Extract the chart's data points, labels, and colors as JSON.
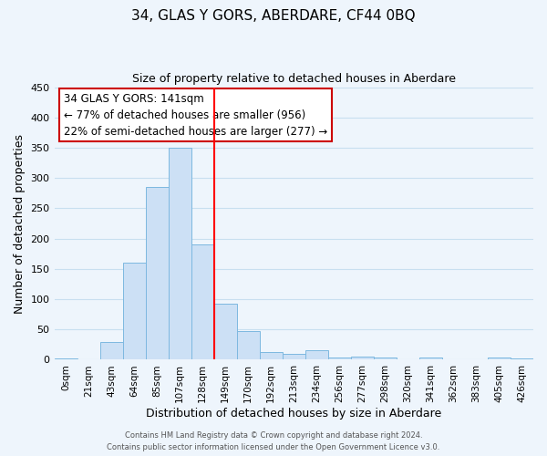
{
  "title": "34, GLAS Y GORS, ABERDARE, CF44 0BQ",
  "subtitle": "Size of property relative to detached houses in Aberdare",
  "xlabel": "Distribution of detached houses by size in Aberdare",
  "ylabel": "Number of detached properties",
  "bar_labels": [
    "0sqm",
    "21sqm",
    "43sqm",
    "64sqm",
    "85sqm",
    "107sqm",
    "128sqm",
    "149sqm",
    "170sqm",
    "192sqm",
    "213sqm",
    "234sqm",
    "256sqm",
    "277sqm",
    "298sqm",
    "320sqm",
    "341sqm",
    "362sqm",
    "383sqm",
    "405sqm",
    "426sqm"
  ],
  "bar_values": [
    2,
    0,
    30,
    160,
    285,
    350,
    190,
    93,
    48,
    13,
    10,
    16,
    4,
    5,
    4,
    0,
    3,
    0,
    0,
    3,
    2
  ],
  "bar_color": "#cce0f5",
  "bar_edge_color": "#7db8e0",
  "vline_x_index": 7.0,
  "vline_color": "red",
  "ylim": [
    0,
    450
  ],
  "yticks": [
    0,
    50,
    100,
    150,
    200,
    250,
    300,
    350,
    400,
    450
  ],
  "annotation_title": "34 GLAS Y GORS: 141sqm",
  "annotation_line1": "← 77% of detached houses are smaller (956)",
  "annotation_line2": "22% of semi-detached houses are larger (277) →",
  "annotation_box_color": "#ffffff",
  "annotation_box_edge": "#cc0000",
  "footer_line1": "Contains HM Land Registry data © Crown copyright and database right 2024.",
  "footer_line2": "Contains public sector information licensed under the Open Government Licence v3.0.",
  "grid_color": "#c8dff0",
  "background_color": "#eef5fc"
}
